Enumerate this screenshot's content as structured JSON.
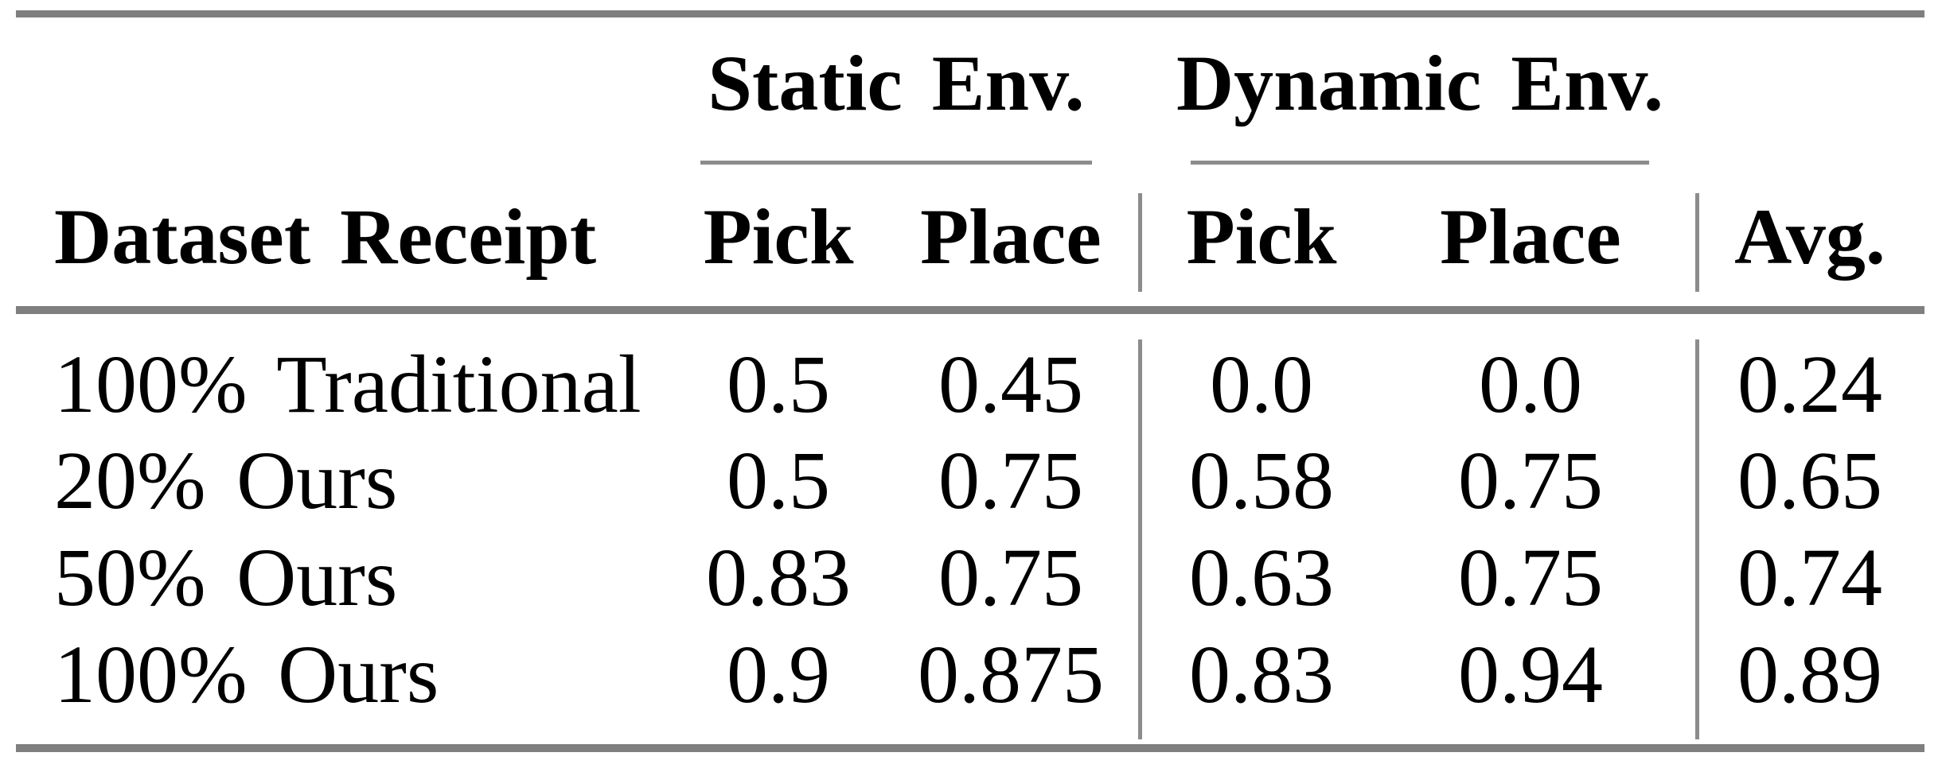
{
  "table": {
    "header": {
      "row_label": "Dataset Receipt",
      "groups": [
        {
          "label": "Static Env.",
          "subcolumns": [
            "Pick",
            "Place"
          ]
        },
        {
          "label": "Dynamic Env.",
          "subcolumns": [
            "Pick",
            "Place"
          ]
        }
      ],
      "avg": "Avg."
    },
    "rows": [
      {
        "label": "100% Traditional",
        "values": [
          "0.5",
          "0.45",
          "0.0",
          "0.0",
          "0.24"
        ]
      },
      {
        "label": "20% Ours",
        "values": [
          "0.5",
          "0.75",
          "0.58",
          "0.75",
          "0.65"
        ]
      },
      {
        "label": "50% Ours",
        "values": [
          "0.83",
          "0.75",
          "0.63",
          "0.75",
          "0.74"
        ]
      },
      {
        "label": "100% Ours",
        "values": [
          "0.9",
          "0.875",
          "0.83",
          "0.94",
          "0.89"
        ]
      }
    ]
  },
  "colors": {
    "rule_gray": "#7f7f7f",
    "thin_rule_gray": "#8c8c8c",
    "text": "#000000",
    "background": "#ffffff"
  },
  "chart_data": {
    "type": "table",
    "columns": [
      "Dataset Receipt",
      "Static Env. Pick",
      "Static Env. Place",
      "Dynamic Env. Pick",
      "Dynamic Env. Place",
      "Avg."
    ],
    "rows": [
      [
        "100% Traditional",
        0.5,
        0.45,
        0.0,
        0.0,
        0.24
      ],
      [
        "20% Ours",
        0.5,
        0.75,
        0.58,
        0.75,
        0.65
      ],
      [
        "50% Ours",
        0.83,
        0.75,
        0.63,
        0.75,
        0.74
      ],
      [
        "100% Ours",
        0.9,
        0.875,
        0.83,
        0.94,
        0.89
      ]
    ]
  }
}
